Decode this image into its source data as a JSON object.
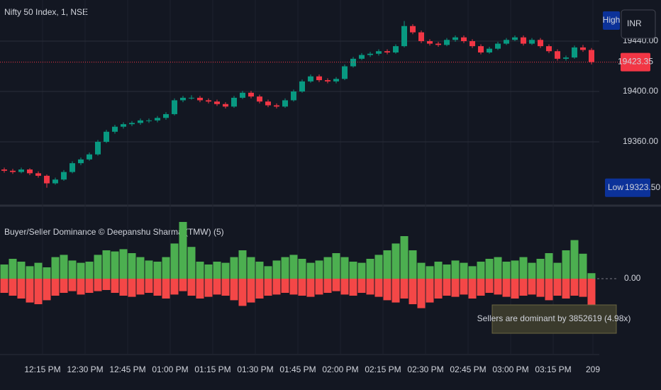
{
  "chart_data": [
    {
      "type": "candlestick",
      "title": "Nifty 50 Index, 1, NSE",
      "currency": "INR",
      "high_label": "High",
      "low_marker": {
        "value": 19323.5,
        "label": "19323.50",
        "name": "Low"
      },
      "last_price": 19423.35,
      "ylim": [
        19310.4,
        19472.7
      ],
      "yticks": [
        {
          "value": 19440,
          "label": "19440.00"
        },
        {
          "value": 19400,
          "label": "19400.00"
        },
        {
          "value": 19360,
          "label": "19360.00"
        }
      ],
      "xlim": [
        0,
        233
      ],
      "xticks": [
        {
          "value": 15,
          "label": "12:15 PM"
        },
        {
          "value": 30,
          "label": "12:30 PM"
        },
        {
          "value": 45,
          "label": "12:45 PM"
        },
        {
          "value": 60,
          "label": "01:00 PM"
        },
        {
          "value": 75,
          "label": "01:15 PM"
        },
        {
          "value": 90,
          "label": "01:30 PM"
        },
        {
          "value": 105,
          "label": "01:45 PM"
        },
        {
          "value": 120,
          "label": "02:00 PM"
        },
        {
          "value": 135,
          "label": "02:15 PM"
        },
        {
          "value": 150,
          "label": "02:30 PM"
        },
        {
          "value": 165,
          "label": "02:45 PM"
        },
        {
          "value": 180,
          "label": "03:00 PM"
        },
        {
          "value": 195,
          "label": "03:15 PM"
        },
        209
      ],
      "up_color": "#089981",
      "down_color": "#f23645",
      "candles": [
        [
          19338,
          19339.5,
          19335.5,
          19337
        ],
        [
          19337,
          19338.5,
          19334.5,
          19336
        ],
        [
          19336,
          19339.5,
          19335,
          19338
        ],
        [
          19338,
          19339,
          19333.5,
          19335
        ],
        [
          19335,
          19336.5,
          19331.5,
          19333
        ],
        [
          19333,
          19334,
          19323.5,
          19327
        ],
        [
          19327,
          19331.5,
          19326,
          19330
        ],
        [
          19330,
          19337.5,
          19329,
          19336
        ],
        [
          19336,
          19344.5,
          19335,
          19343
        ],
        [
          19343,
          19347.5,
          19341.5,
          19346
        ],
        [
          19346,
          19351.5,
          19345,
          19350
        ],
        [
          19350,
          19361.5,
          19349,
          19360
        ],
        [
          19360,
          19369.5,
          19359,
          19368
        ],
        [
          19368,
          19373.5,
          19366.5,
          19372
        ],
        [
          19372,
          19375.5,
          19370.5,
          19374
        ],
        [
          19374,
          19376.5,
          19372.5,
          19375
        ],
        [
          19375,
          19378.5,
          19373.5,
          19377
        ],
        [
          19377,
          19378.5,
          19375,
          19377
        ],
        [
          19377,
          19380.5,
          19375.5,
          19379
        ],
        [
          19379,
          19383.5,
          19377.5,
          19382
        ],
        [
          19382,
          19394.5,
          19381,
          19393
        ],
        [
          19393,
          19396.5,
          19391.5,
          19395
        ],
        [
          19395,
          19397,
          19393.5,
          19395
        ],
        [
          19395,
          19396.5,
          19391.5,
          19393
        ],
        [
          19393,
          19394.5,
          19390.5,
          19392
        ],
        [
          19392,
          19393.5,
          19388.5,
          19390
        ],
        [
          19390,
          19391.5,
          19386.5,
          19388
        ],
        [
          19388,
          19396.5,
          19387,
          19395
        ],
        [
          19395,
          19400.5,
          19394,
          19399
        ],
        [
          19399,
          19400.5,
          19394.5,
          19396
        ],
        [
          19396,
          19397.5,
          19390.5,
          19392
        ],
        [
          19392,
          19393.5,
          19387.5,
          19389
        ],
        [
          19389,
          19390.5,
          19386.5,
          19388
        ],
        [
          19388,
          19394.5,
          19387,
          19393
        ],
        [
          19393,
          19401.5,
          19392,
          19400
        ],
        [
          19400,
          19409.5,
          19399,
          19408
        ],
        [
          19408,
          19413.5,
          19407,
          19412
        ],
        [
          19412,
          19413.5,
          19407.5,
          19409
        ],
        [
          19409,
          19410.5,
          19406.5,
          19408
        ],
        [
          19408,
          19411.5,
          19406.5,
          19410
        ],
        [
          19410,
          19421.5,
          19409,
          19420
        ],
        [
          19420,
          19427.5,
          19419,
          19426
        ],
        [
          19426,
          19430.5,
          19425,
          19429
        ],
        [
          19429,
          19431.5,
          19427.5,
          19430
        ],
        [
          19430,
          19433.5,
          19428.5,
          19432
        ],
        [
          19432,
          19433.5,
          19429.5,
          19431
        ],
        [
          19431,
          19437.5,
          19430,
          19436
        ],
        [
          19436,
          19456,
          19435,
          19452
        ],
        [
          19452,
          19453.5,
          19445.5,
          19447
        ],
        [
          19447,
          19448.5,
          19438.5,
          19440
        ],
        [
          19440,
          19441.5,
          19436.5,
          19438
        ],
        [
          19438,
          19439.5,
          19435.5,
          19437
        ],
        [
          19437,
          19442.5,
          19436,
          19441
        ],
        [
          19441,
          19444.5,
          19439.5,
          19443
        ],
        [
          19443,
          19444.5,
          19438.5,
          19440
        ],
        [
          19440,
          19441.5,
          19434.5,
          19436
        ],
        [
          19436,
          19437.5,
          19429.5,
          19431
        ],
        [
          19431,
          19435.5,
          19430,
          19434
        ],
        [
          19434,
          19439.5,
          19433,
          19438
        ],
        [
          19438,
          19442.5,
          19437,
          19441
        ],
        [
          19441,
          19444.5,
          19440,
          19443
        ],
        [
          19443,
          19444.5,
          19436.5,
          19438
        ],
        [
          19438,
          19442.5,
          19437,
          19441
        ],
        [
          19441,
          19442.5,
          19434.5,
          19436
        ],
        [
          19436,
          19437.5,
          19430.5,
          19432
        ],
        [
          19432,
          19433.5,
          19424.5,
          19426
        ],
        [
          19426,
          19428.5,
          19424.5,
          19427
        ],
        [
          19427,
          19436.5,
          19426,
          19435
        ],
        [
          19435,
          19437,
          19431.5,
          19433
        ],
        [
          19433,
          19434.5,
          19421.5,
          19423.35
        ]
      ]
    },
    {
      "type": "histogram",
      "title": "Buyer/Seller Dominance © Deepanshu Sharma (TMW) (5)",
      "ylim": [
        -9000000,
        11000000
      ],
      "yticks": [
        {
          "value": 0,
          "label": "0.00"
        }
      ],
      "annotation": "Sellers are dominant by 3852619 (4.98x)",
      "series": [
        {
          "name": "Buyers",
          "color": "#4caf50",
          "values": [
            2500000,
            3500000,
            3000000,
            2200000,
            2800000,
            2000000,
            3800000,
            4200000,
            3200000,
            2800000,
            3000000,
            4200000,
            5000000,
            4800000,
            5200000,
            4500000,
            3800000,
            3200000,
            3000000,
            3800000,
            6200000,
            10000000,
            5600000,
            3000000,
            2500000,
            3000000,
            2800000,
            3800000,
            5000000,
            3800000,
            3000000,
            2200000,
            3200000,
            3800000,
            4200000,
            3500000,
            2800000,
            3200000,
            3800000,
            4500000,
            3800000,
            3000000,
            2800000,
            3500000,
            4200000,
            5000000,
            6200000,
            7500000,
            5000000,
            2800000,
            2200000,
            3000000,
            2500000,
            3200000,
            2800000,
            2200000,
            3000000,
            3500000,
            3800000,
            3000000,
            3200000,
            3800000,
            2800000,
            3500000,
            4500000,
            2800000,
            5000000,
            6800000,
            4400000,
            967995
          ]
        },
        {
          "name": "Sellers",
          "color": "#f44747",
          "values": [
            -2500000,
            -3000000,
            -3500000,
            -4200000,
            -4500000,
            -3800000,
            -3000000,
            -2500000,
            -2200000,
            -2800000,
            -2500000,
            -2200000,
            -2000000,
            -2500000,
            -3000000,
            -3200000,
            -2800000,
            -2500000,
            -3000000,
            -3500000,
            -2800000,
            -2200000,
            -3000000,
            -3500000,
            -3200000,
            -2800000,
            -3000000,
            -3800000,
            -4800000,
            -4200000,
            -3500000,
            -3000000,
            -2800000,
            -2500000,
            -2800000,
            -3000000,
            -3200000,
            -2800000,
            -2500000,
            -2200000,
            -2800000,
            -3000000,
            -2500000,
            -2800000,
            -3200000,
            -3800000,
            -4200000,
            -3500000,
            -4500000,
            -5200000,
            -4200000,
            -3500000,
            -3000000,
            -3200000,
            -2800000,
            -3500000,
            -3000000,
            -2500000,
            -2800000,
            -3200000,
            -3500000,
            -3000000,
            -2800000,
            -3200000,
            -3800000,
            -3000000,
            -3500000,
            -3000000,
            -3200000,
            -4820614
          ]
        }
      ]
    }
  ]
}
